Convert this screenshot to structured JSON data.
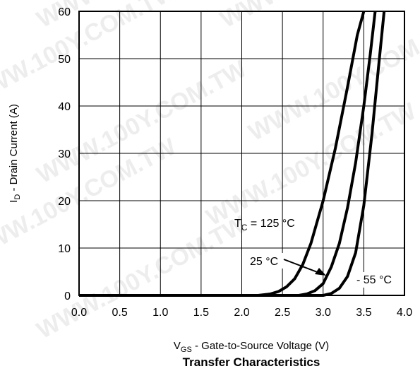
{
  "chart_data": {
    "type": "line",
    "title": "Transfer Characteristics",
    "xlabel": {
      "main": "V",
      "sub": "GS",
      "rest": " - Gate-to-Source Voltage (V)"
    },
    "ylabel": {
      "main": "I",
      "sub": "D",
      "rest": " - Drain Current (A)"
    },
    "xlim": [
      0.0,
      4.0
    ],
    "ylim": [
      0,
      60
    ],
    "x_ticks": [
      "0.0",
      "0.5",
      "1.0",
      "1.5",
      "2.0",
      "2.5",
      "3.0",
      "3.5",
      "4.0"
    ],
    "y_ticks": [
      "0",
      "10",
      "20",
      "30",
      "40",
      "50",
      "60"
    ],
    "grid": true,
    "series": [
      {
        "x": [
          0.0,
          2.2,
          2.35,
          2.45,
          2.55,
          2.65,
          2.75,
          2.85,
          3.0,
          3.15,
          3.3,
          3.42,
          3.5
        ],
        "y": [
          0,
          0,
          0.3,
          0.8,
          1.8,
          3.5,
          6.5,
          11,
          20,
          31,
          44,
          55,
          60
        ]
      },
      {
        "x": [
          0.0,
          2.7,
          2.8,
          2.9,
          3.0,
          3.1,
          3.2,
          3.3,
          3.4,
          3.5,
          3.58,
          3.64
        ],
        "y": [
          0,
          0,
          0.3,
          1.0,
          2.5,
          6,
          11,
          18.5,
          28,
          40,
          51,
          60
        ]
      },
      {
        "x": [
          0.0,
          3.0,
          3.1,
          3.2,
          3.3,
          3.4,
          3.5,
          3.6,
          3.68,
          3.75
        ],
        "y": [
          0,
          0,
          0.4,
          1.5,
          4,
          9,
          19,
          34,
          48,
          60
        ]
      }
    ],
    "annotations": [
      {
        "main": "T",
        "sub": "C",
        "rest": " = 125 °C"
      },
      {
        "text": "25 °C"
      },
      {
        "text": "- 55 °C"
      }
    ],
    "watermark": "WWW.100Y.COM.TW"
  }
}
